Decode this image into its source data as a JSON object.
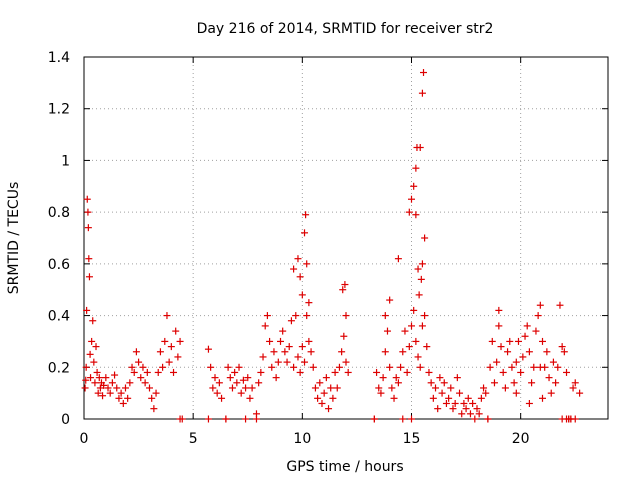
{
  "chart_data": {
    "type": "scatter",
    "title": "Day 216 of 2014, SRMTID for receiver str2",
    "xlabel": "GPS time / hours",
    "ylabel": "SRMTID / TECUs",
    "xlim": [
      0,
      24
    ],
    "ylim": [
      0,
      1.4
    ],
    "xticks": [
      0,
      5,
      10,
      15,
      20
    ],
    "xtick_labels": [
      "0",
      "5",
      "10",
      "15",
      "20"
    ],
    "yticks": [
      0,
      0.2,
      0.4,
      0.6,
      0.8,
      1,
      1.2,
      1.4
    ],
    "ytick_labels": [
      "0",
      "0.2",
      "0.4",
      "0.6",
      "0.8",
      "1",
      "1.2",
      "1.4"
    ],
    "grid": true,
    "marker": "+",
    "color": "#dd0000",
    "series": [
      {
        "name": "SRMTID",
        "points": [
          [
            0.05,
            0.12
          ],
          [
            0.08,
            0.15
          ],
          [
            0.1,
            0.2
          ],
          [
            0.12,
            0.42
          ],
          [
            0.15,
            0.85
          ],
          [
            0.18,
            0.8
          ],
          [
            0.2,
            0.74
          ],
          [
            0.22,
            0.62
          ],
          [
            0.25,
            0.55
          ],
          [
            0.28,
            0.25
          ],
          [
            0.3,
            0.16
          ],
          [
            0.35,
            0.3
          ],
          [
            0.4,
            0.38
          ],
          [
            0.45,
            0.22
          ],
          [
            0.5,
            0.14
          ],
          [
            0.55,
            0.28
          ],
          [
            0.6,
            0.18
          ],
          [
            0.65,
            0.1
          ],
          [
            0.7,
            0.16
          ],
          [
            0.75,
            0.12
          ],
          [
            0.8,
            0.14
          ],
          [
            0.85,
            0.09
          ],
          [
            0.9,
            0.13
          ],
          [
            1.0,
            0.16
          ],
          [
            1.1,
            0.12
          ],
          [
            1.2,
            0.1
          ],
          [
            1.3,
            0.14
          ],
          [
            1.4,
            0.17
          ],
          [
            1.5,
            0.12
          ],
          [
            1.6,
            0.08
          ],
          [
            1.7,
            0.1
          ],
          [
            1.8,
            0.06
          ],
          [
            1.9,
            0.12
          ],
          [
            2.0,
            0.08
          ],
          [
            2.1,
            0.14
          ],
          [
            2.2,
            0.2
          ],
          [
            2.3,
            0.18
          ],
          [
            2.4,
            0.26
          ],
          [
            2.5,
            0.22
          ],
          [
            2.6,
            0.16
          ],
          [
            2.7,
            0.2
          ],
          [
            2.8,
            0.14
          ],
          [
            2.9,
            0.18
          ],
          [
            3.0,
            0.12
          ],
          [
            3.1,
            0.08
          ],
          [
            3.2,
            0.04
          ],
          [
            3.3,
            0.1
          ],
          [
            3.4,
            0.18
          ],
          [
            3.5,
            0.26
          ],
          [
            3.6,
            0.2
          ],
          [
            3.7,
            0.3
          ],
          [
            3.8,
            0.4
          ],
          [
            3.9,
            0.22
          ],
          [
            4.0,
            0.28
          ],
          [
            4.1,
            0.18
          ],
          [
            4.2,
            0.34
          ],
          [
            4.3,
            0.24
          ],
          [
            4.4,
            0.3
          ],
          [
            4.5,
            0.0
          ],
          [
            5.7,
            0.27
          ],
          [
            5.8,
            0.2
          ],
          [
            5.9,
            0.12
          ],
          [
            6.0,
            0.16
          ],
          [
            6.1,
            0.1
          ],
          [
            6.2,
            0.14
          ],
          [
            6.3,
            0.08
          ],
          [
            6.5,
            0.0
          ],
          [
            6.6,
            0.2
          ],
          [
            6.7,
            0.16
          ],
          [
            6.8,
            0.12
          ],
          [
            6.9,
            0.18
          ],
          [
            7.0,
            0.14
          ],
          [
            7.1,
            0.2
          ],
          [
            7.2,
            0.1
          ],
          [
            7.3,
            0.15
          ],
          [
            7.4,
            0.12
          ],
          [
            7.5,
            0.16
          ],
          [
            7.6,
            0.08
          ],
          [
            7.7,
            0.12
          ],
          [
            7.9,
            0.02
          ],
          [
            8.0,
            0.14
          ],
          [
            8.1,
            0.18
          ],
          [
            8.2,
            0.24
          ],
          [
            8.3,
            0.36
          ],
          [
            8.4,
            0.4
          ],
          [
            8.5,
            0.3
          ],
          [
            8.6,
            0.2
          ],
          [
            8.7,
            0.26
          ],
          [
            8.8,
            0.16
          ],
          [
            8.9,
            0.22
          ],
          [
            9.0,
            0.3
          ],
          [
            9.1,
            0.34
          ],
          [
            9.2,
            0.26
          ],
          [
            9.3,
            0.22
          ],
          [
            9.4,
            0.28
          ],
          [
            9.5,
            0.38
          ],
          [
            9.6,
            0.2
          ],
          [
            9.7,
            0.4
          ],
          [
            9.8,
            0.24
          ],
          [
            9.9,
            0.18
          ],
          [
            10.0,
            0.28
          ],
          [
            10.1,
            0.22
          ],
          [
            10.2,
            0.4
          ],
          [
            10.3,
            0.3
          ],
          [
            10.4,
            0.26
          ],
          [
            10.5,
            0.2
          ],
          [
            9.6,
            0.58
          ],
          [
            9.8,
            0.62
          ],
          [
            9.9,
            0.55
          ],
          [
            10.0,
            0.48
          ],
          [
            10.1,
            0.72
          ],
          [
            10.15,
            0.79
          ],
          [
            10.2,
            0.6
          ],
          [
            10.3,
            0.45
          ],
          [
            10.6,
            0.12
          ],
          [
            10.7,
            0.08
          ],
          [
            10.8,
            0.14
          ],
          [
            10.9,
            0.06
          ],
          [
            11.0,
            0.1
          ],
          [
            11.1,
            0.16
          ],
          [
            11.2,
            0.04
          ],
          [
            11.3,
            0.12
          ],
          [
            11.4,
            0.08
          ],
          [
            11.5,
            0.18
          ],
          [
            11.6,
            0.12
          ],
          [
            11.7,
            0.2
          ],
          [
            11.8,
            0.26
          ],
          [
            11.9,
            0.32
          ],
          [
            12.0,
            0.22
          ],
          [
            12.1,
            0.18
          ],
          [
            11.95,
            0.52
          ],
          [
            12.0,
            0.4
          ],
          [
            11.85,
            0.5
          ],
          [
            13.3,
            0.0
          ],
          [
            13.4,
            0.18
          ],
          [
            13.5,
            0.12
          ],
          [
            13.6,
            0.1
          ],
          [
            13.7,
            0.16
          ],
          [
            13.8,
            0.26
          ],
          [
            13.9,
            0.34
          ],
          [
            14.0,
            0.2
          ],
          [
            14.1,
            0.12
          ],
          [
            14.2,
            0.08
          ],
          [
            14.3,
            0.16
          ],
          [
            14.4,
            0.14
          ],
          [
            14.5,
            0.2
          ],
          [
            14.6,
            0.26
          ],
          [
            14.7,
            0.34
          ],
          [
            14.8,
            0.18
          ],
          [
            14.9,
            0.28
          ],
          [
            15.0,
            0.36
          ],
          [
            15.1,
            0.42
          ],
          [
            15.2,
            0.3
          ],
          [
            15.3,
            0.24
          ],
          [
            15.4,
            0.2
          ],
          [
            15.5,
            0.36
          ],
          [
            15.6,
            0.4
          ],
          [
            15.7,
            0.28
          ],
          [
            15.8,
            0.18
          ],
          [
            15.9,
            0.14
          ],
          [
            16.0,
            0.08
          ],
          [
            16.1,
            0.12
          ],
          [
            16.2,
            0.04
          ],
          [
            13.8,
            0.4
          ],
          [
            14.0,
            0.46
          ],
          [
            14.4,
            0.62
          ],
          [
            14.9,
            0.8
          ],
          [
            15.0,
            0.85
          ],
          [
            15.1,
            0.9
          ],
          [
            15.2,
            0.97
          ],
          [
            15.25,
            1.05
          ],
          [
            15.4,
            1.05
          ],
          [
            15.5,
            1.26
          ],
          [
            15.55,
            1.34
          ],
          [
            15.3,
            0.58
          ],
          [
            15.5,
            0.6
          ],
          [
            15.6,
            0.7
          ],
          [
            15.45,
            0.54
          ],
          [
            15.2,
            0.79
          ],
          [
            15.35,
            0.48
          ],
          [
            16.3,
            0.16
          ],
          [
            16.4,
            0.1
          ],
          [
            16.5,
            0.14
          ],
          [
            16.6,
            0.06
          ],
          [
            16.7,
            0.08
          ],
          [
            16.8,
            0.12
          ],
          [
            16.9,
            0.04
          ],
          [
            17.0,
            0.06
          ],
          [
            17.1,
            0.16
          ],
          [
            17.2,
            0.1
          ],
          [
            17.3,
            0.02
          ],
          [
            17.4,
            0.06
          ],
          [
            17.5,
            0.04
          ],
          [
            17.6,
            0.08
          ],
          [
            17.7,
            0.02
          ],
          [
            17.8,
            0.06
          ],
          [
            17.9,
            0.0
          ],
          [
            18.0,
            0.04
          ],
          [
            18.1,
            0.02
          ],
          [
            18.2,
            0.08
          ],
          [
            18.3,
            0.12
          ],
          [
            18.4,
            0.1
          ],
          [
            18.5,
            0.0
          ],
          [
            18.6,
            0.2
          ],
          [
            18.7,
            0.3
          ],
          [
            18.8,
            0.14
          ],
          [
            18.9,
            0.22
          ],
          [
            19.0,
            0.36
          ],
          [
            19.1,
            0.28
          ],
          [
            19.2,
            0.18
          ],
          [
            19.3,
            0.12
          ],
          [
            19.4,
            0.26
          ],
          [
            19.5,
            0.3
          ],
          [
            19.6,
            0.2
          ],
          [
            19.7,
            0.14
          ],
          [
            19.8,
            0.22
          ],
          [
            19.9,
            0.3
          ],
          [
            20.0,
            0.18
          ],
          [
            20.1,
            0.24
          ],
          [
            20.2,
            0.32
          ],
          [
            20.3,
            0.36
          ],
          [
            20.4,
            0.26
          ],
          [
            20.5,
            0.14
          ],
          [
            20.6,
            0.2
          ],
          [
            20.7,
            0.34
          ],
          [
            20.8,
            0.4
          ],
          [
            20.9,
            0.44
          ],
          [
            21.0,
            0.3
          ],
          [
            21.1,
            0.2
          ],
          [
            21.2,
            0.26
          ],
          [
            21.3,
            0.16
          ],
          [
            21.4,
            0.1
          ],
          [
            21.5,
            0.22
          ],
          [
            21.6,
            0.14
          ],
          [
            21.7,
            0.2
          ],
          [
            21.8,
            0.44
          ],
          [
            21.9,
            0.28
          ],
          [
            22.0,
            0.26
          ],
          [
            22.1,
            0.18
          ],
          [
            22.2,
            0.0
          ],
          [
            22.4,
            0.12
          ],
          [
            22.5,
            0.14
          ],
          [
            22.7,
            0.1
          ],
          [
            19.0,
            0.42
          ],
          [
            19.8,
            0.1
          ],
          [
            20.4,
            0.06
          ],
          [
            20.9,
            0.2
          ],
          [
            21.0,
            0.08
          ],
          [
            22.3,
            0.0
          ],
          [
            21.9,
            0.0
          ],
          [
            22.1,
            0.0
          ],
          [
            4.4,
            0.0
          ],
          [
            5.7,
            0.0
          ],
          [
            6.5,
            0.0
          ],
          [
            7.4,
            0.0
          ],
          [
            7.9,
            0.0
          ],
          [
            13.3,
            0.0
          ],
          [
            14.6,
            0.0
          ],
          [
            15.0,
            0.0
          ],
          [
            18.5,
            0.0
          ],
          [
            22.2,
            0.0
          ],
          [
            22.3,
            0.0
          ],
          [
            22.5,
            0.0
          ]
        ]
      }
    ]
  }
}
